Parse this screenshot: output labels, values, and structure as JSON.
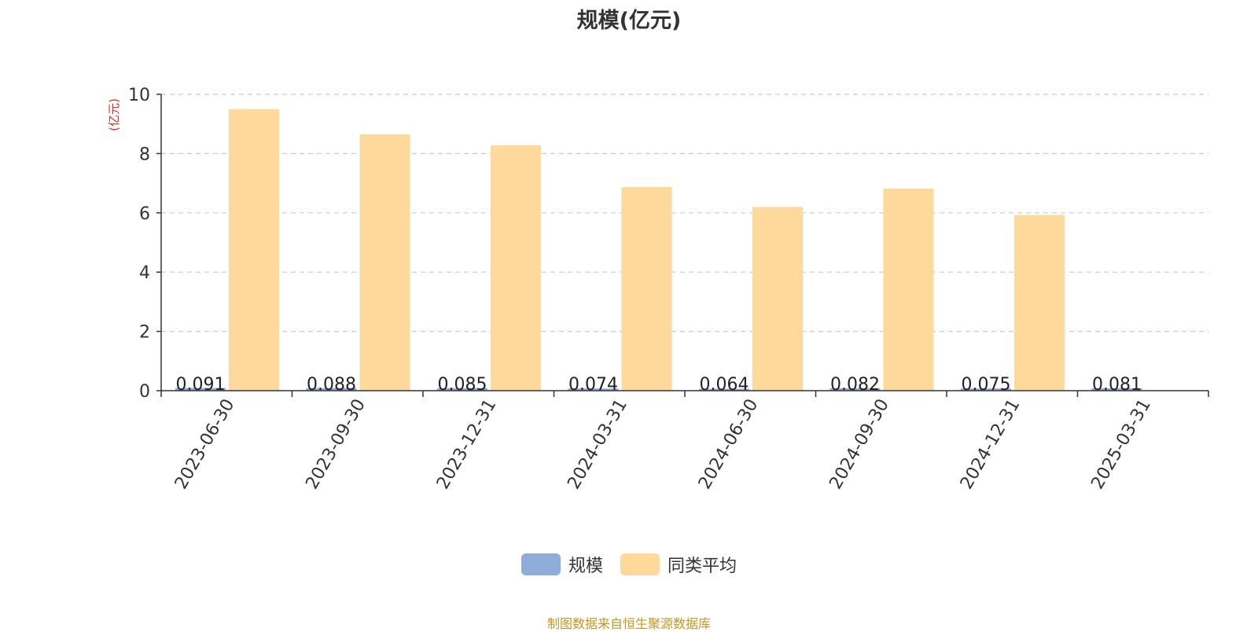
{
  "title": "规模(亿元)",
  "source_note": "制图数据来自恒生聚源数据库",
  "colors": {
    "series_size": "#8fadd9",
    "series_avg": "#fed99b",
    "axis_unit": "#e8261c",
    "grid": "#cccccc",
    "axis": "#333333",
    "source": "#c8961e"
  },
  "legend": [
    {
      "name": "规模",
      "color": "#8fadd9"
    },
    {
      "name": "同类平均",
      "color": "#fed99b"
    }
  ],
  "chart_data": {
    "type": "bar",
    "title": "规模(亿元)",
    "ylabel": "(亿元)",
    "xlabel": "",
    "ylim": [
      0,
      10
    ],
    "yticks": [
      0,
      2,
      4,
      6,
      8,
      10
    ],
    "grid": true,
    "legend_position": "bottom-center",
    "categories": [
      "2023-06-30",
      "2023-09-30",
      "2023-12-31",
      "2024-03-31",
      "2024-06-30",
      "2024-09-30",
      "2024-12-31",
      "2025-03-31"
    ],
    "series": [
      {
        "name": "规模",
        "values": [
          0.091,
          0.088,
          0.085,
          0.074,
          0.064,
          0.082,
          0.075,
          0.081
        ],
        "labels": [
          "0.091",
          "0.088",
          "0.085",
          "0.074",
          "0.064",
          "0.082",
          "0.075",
          "0.081"
        ]
      },
      {
        "name": "同类平均",
        "values": [
          9.5,
          8.65,
          8.28,
          6.87,
          6.2,
          6.82,
          5.93,
          null
        ]
      }
    ]
  }
}
